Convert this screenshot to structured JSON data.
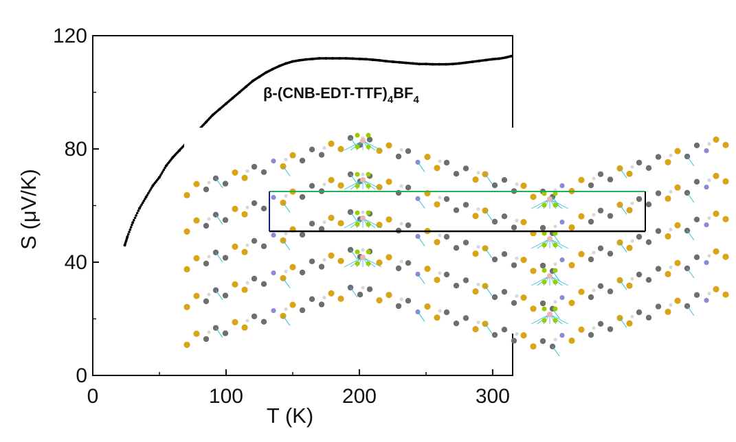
{
  "chart_data": {
    "type": "scatter",
    "title": "",
    "xlabel": "T (K)",
    "ylabel": "S (μV/K)",
    "xlim": [
      0,
      315
    ],
    "ylim": [
      0,
      120
    ],
    "x_ticks": [
      "0",
      "100",
      "200",
      "300"
    ],
    "y_ticks": [
      "0",
      "40",
      "80",
      "120"
    ],
    "annotation": {
      "prefix": "β-(CNB-EDT-TTF)",
      "sub1": "4",
      "mid": "BF",
      "sub2": "4"
    },
    "grid": false,
    "legend": "none",
    "series": [
      {
        "color": "#000000",
        "x": [
          24,
          26,
          30,
          35,
          40,
          45,
          50,
          55,
          60,
          65,
          70,
          75,
          80,
          85,
          90,
          95,
          100,
          105,
          110,
          115,
          120,
          125,
          130,
          135,
          140,
          145,
          150,
          155,
          160,
          165,
          170,
          175,
          180,
          185,
          190,
          195,
          200,
          205,
          210,
          215,
          220,
          225,
          230,
          235,
          240,
          245,
          250,
          255,
          260,
          265,
          270,
          275,
          280,
          285,
          290,
          295,
          300,
          305,
          310,
          314
        ],
        "y": [
          46,
          49,
          54,
          59,
          63,
          67,
          70,
          74,
          77,
          79.5,
          82,
          84.5,
          87,
          89.5,
          92,
          94,
          96,
          98,
          100,
          102,
          104,
          105.5,
          107,
          108.2,
          109.3,
          110.2,
          110.9,
          111.3,
          111.6,
          111.8,
          112,
          112,
          112,
          112,
          112,
          111.9,
          111.8,
          111.7,
          111.5,
          111.3,
          111,
          110.8,
          110.6,
          110.4,
          110.2,
          110,
          110,
          109.9,
          109.9,
          109.9,
          110,
          110.2,
          110.5,
          110.8,
          111.1,
          111.4,
          111.7,
          111.9,
          112.3,
          112.8
        ]
      }
    ],
    "inset": {
      "description_hidden": true,
      "colors": {
        "sulfur": "#d9a417",
        "carbon": "#6e6e6e",
        "hydrogen": "#d8d8d8",
        "nitrogen": "#8a8ad6",
        "boron": "#f2b3b3",
        "fluorine": "#9acd00",
        "contact": "#2bbfd6",
        "cell_top": "#22b14c",
        "cell_frame": "#000000",
        "cell_side": "#1a1aa8"
      }
    }
  }
}
